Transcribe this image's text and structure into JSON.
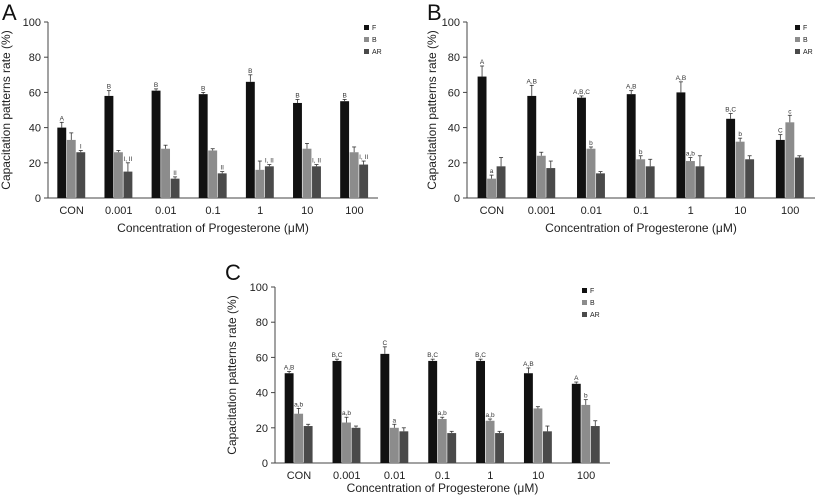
{
  "figure": {
    "colors": {
      "F": "#111111",
      "B": "#8c8c8c",
      "AR": "#4a4a4a"
    }
  },
  "chart_data": [
    {
      "type": "bar",
      "panel": "A",
      "categories": [
        "CON",
        "0.001",
        "0.01",
        "0.1",
        "1",
        "10",
        "100"
      ],
      "ylabel": "Capacitation patterns rate (%)",
      "xlabel": "Concentration of Progesterone (μM)",
      "ylim": [
        0,
        100
      ],
      "yticks": [
        "0",
        "20",
        "40",
        "60",
        "80",
        "100"
      ],
      "legend_position": "top-right",
      "series": [
        {
          "name": "F",
          "values": [
            40,
            58,
            61,
            59,
            66,
            54,
            55
          ],
          "errors": [
            3,
            3,
            1,
            1,
            4,
            2,
            1
          ],
          "labels": [
            "A",
            "B",
            "B",
            "B",
            "B",
            "B",
            "B"
          ]
        },
        {
          "name": "B",
          "values": [
            33,
            26,
            28,
            27,
            16,
            28,
            26
          ],
          "errors": [
            4,
            1,
            2,
            1,
            5,
            3,
            3
          ],
          "labels": [
            "",
            "",
            "",
            "",
            "",
            "",
            ""
          ]
        },
        {
          "name": "AR",
          "values": [
            26,
            15,
            11,
            14,
            18,
            18,
            19
          ],
          "errors": [
            1,
            5,
            1,
            1,
            1,
            1,
            2
          ],
          "labels": [
            "I",
            "I, II",
            "II",
            "II",
            "I, II",
            "I, II",
            "I, II"
          ]
        }
      ]
    },
    {
      "type": "bar",
      "panel": "B",
      "categories": [
        "CON",
        "0.001",
        "0.01",
        "0.1",
        "1",
        "10",
        "100"
      ],
      "ylabel": "Capacitation patterns rate (%)",
      "xlabel": "Concentration of Progesterone (μM)",
      "ylim": [
        0,
        100
      ],
      "yticks": [
        "0",
        "20",
        "40",
        "60",
        "80",
        "100"
      ],
      "legend_position": "top-right",
      "series": [
        {
          "name": "F",
          "values": [
            69,
            58,
            57,
            59,
            60,
            45,
            33
          ],
          "errors": [
            6,
            6,
            1,
            2,
            6,
            3,
            3
          ],
          "labels": [
            "A",
            "A,B",
            "A,B,C",
            "A,B",
            "A,B",
            "B,C",
            "C"
          ]
        },
        {
          "name": "B",
          "values": [
            11,
            24,
            28,
            22,
            21,
            32,
            43
          ],
          "errors": [
            2,
            2,
            1,
            2,
            2,
            2,
            4
          ],
          "labels": [
            "a",
            "",
            "b",
            "b",
            "a,b",
            "b",
            "c"
          ]
        },
        {
          "name": "AR",
          "values": [
            18,
            17,
            14,
            18,
            18,
            22,
            23
          ],
          "errors": [
            5,
            4,
            1,
            4,
            6,
            2,
            1
          ],
          "labels": [
            "",
            "",
            "",
            "",
            "",
            "",
            ""
          ]
        }
      ]
    },
    {
      "type": "bar",
      "panel": "C",
      "categories": [
        "CON",
        "0.001",
        "0.01",
        "0.1",
        "1",
        "10",
        "100"
      ],
      "ylabel": "Capacitation patterns rate (%)",
      "xlabel": "Concentration of Progesterone (μM)",
      "ylim": [
        0,
        100
      ],
      "yticks": [
        "0",
        "20",
        "40",
        "60",
        "80",
        "100"
      ],
      "legend_position": "top-right",
      "series": [
        {
          "name": "F",
          "values": [
            51,
            58,
            62,
            58,
            58,
            51,
            45
          ],
          "errors": [
            1,
            1,
            4,
            1,
            1,
            3,
            1
          ],
          "labels": [
            "A,B",
            "B,C",
            "C",
            "B,C",
            "B,C",
            "A,B",
            "A"
          ]
        },
        {
          "name": "B",
          "values": [
            28,
            23,
            20,
            25,
            24,
            31,
            33
          ],
          "errors": [
            3,
            3,
            2,
            1,
            1,
            1,
            3
          ],
          "labels": [
            "a,b",
            "a,b",
            "a",
            "a,b",
            "a,b",
            "",
            "b"
          ]
        },
        {
          "name": "AR",
          "values": [
            21,
            20,
            18,
            17,
            17,
            18,
            21
          ],
          "errors": [
            1,
            1,
            2,
            1,
            1,
            3,
            3
          ],
          "labels": [
            "",
            "",
            "",
            "",
            "",
            "",
            ""
          ]
        }
      ]
    }
  ]
}
